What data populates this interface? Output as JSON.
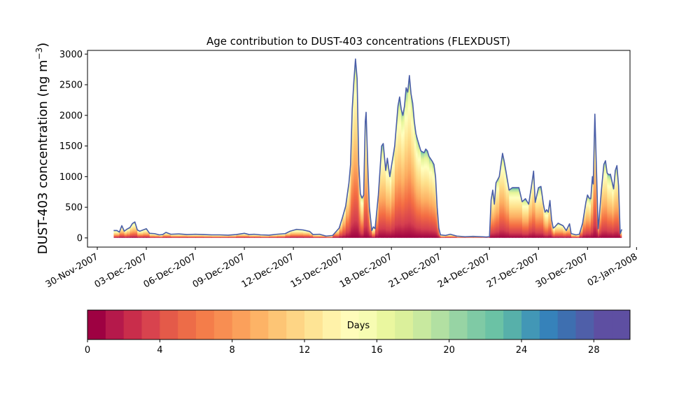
{
  "chart_data": {
    "type": "area",
    "title": "Age contribution to DUST-403 concentrations (FLEXDUST)",
    "ylabel_main": "DUST-403 concentration (ng m",
    "ylabel_sup": "−3",
    "ylabel_close": ")",
    "xlabel": "",
    "y_ticks": [
      0,
      500,
      1000,
      1500,
      2000,
      2500,
      3000
    ],
    "y_tick_labels": [
      "0",
      "500",
      "1000",
      "1500",
      "2000",
      "2500",
      "3000"
    ],
    "ylim": [
      -150,
      3060
    ],
    "xlim_days": [
      -0.6,
      32.6
    ],
    "x_origin_date": "30-Nov-2007",
    "x_tick_days": [
      0,
      3,
      6,
      9,
      12,
      15,
      18,
      21,
      24,
      27,
      30,
      33
    ],
    "x_tick_labels": [
      "30-Nov-2007",
      "03-Dec-2007",
      "06-Dec-2007",
      "09-Dec-2007",
      "12-Dec-2007",
      "15-Dec-2007",
      "18-Dec-2007",
      "21-Dec-2007",
      "24-Dec-2007",
      "27-Dec-2007",
      "30-Dec-2007",
      "02-Jan-2008"
    ],
    "series": [
      {
        "values": [
          [
            1.0,
            120
          ],
          [
            1.2,
            120
          ],
          [
            1.35,
            95
          ],
          [
            1.5,
            200
          ],
          [
            1.65,
            110
          ],
          [
            1.8,
            140
          ],
          [
            2.0,
            170
          ],
          [
            2.15,
            235
          ],
          [
            2.3,
            260
          ],
          [
            2.45,
            130
          ],
          [
            2.6,
            110
          ],
          [
            2.8,
            130
          ],
          [
            3.0,
            150
          ],
          [
            3.2,
            75
          ],
          [
            3.5,
            70
          ],
          [
            3.8,
            50
          ],
          [
            4.0,
            55
          ],
          [
            4.2,
            90
          ],
          [
            4.5,
            60
          ],
          [
            5.0,
            65
          ],
          [
            5.5,
            55
          ],
          [
            6.0,
            60
          ],
          [
            6.5,
            55
          ],
          [
            7.0,
            50
          ],
          [
            7.5,
            50
          ],
          [
            8.0,
            45
          ],
          [
            8.5,
            55
          ],
          [
            9.0,
            75
          ],
          [
            9.3,
            55
          ],
          [
            9.6,
            60
          ],
          [
            10.0,
            50
          ],
          [
            10.5,
            45
          ],
          [
            11.0,
            60
          ],
          [
            11.5,
            70
          ],
          [
            11.8,
            110
          ],
          [
            12.2,
            140
          ],
          [
            12.6,
            130
          ],
          [
            13.0,
            105
          ],
          [
            13.2,
            55
          ],
          [
            13.6,
            60
          ],
          [
            14.0,
            30
          ],
          [
            14.4,
            40
          ],
          [
            14.8,
            160
          ],
          [
            15.0,
            330
          ],
          [
            15.2,
            520
          ],
          [
            15.4,
            900
          ],
          [
            15.5,
            1200
          ],
          [
            15.6,
            2100
          ],
          [
            15.7,
            2550
          ],
          [
            15.8,
            2920
          ],
          [
            15.9,
            2600
          ],
          [
            16.0,
            1200
          ],
          [
            16.1,
            720
          ],
          [
            16.2,
            650
          ],
          [
            16.3,
            700
          ],
          [
            16.4,
            1900
          ],
          [
            16.45,
            2050
          ],
          [
            16.55,
            1200
          ],
          [
            16.65,
            500
          ],
          [
            16.8,
            120
          ],
          [
            16.9,
            180
          ],
          [
            17.0,
            150
          ],
          [
            17.2,
            700
          ],
          [
            17.4,
            1500
          ],
          [
            17.5,
            1540
          ],
          [
            17.65,
            1100
          ],
          [
            17.75,
            1300
          ],
          [
            17.9,
            1000
          ],
          [
            18.0,
            1170
          ],
          [
            18.2,
            1500
          ],
          [
            18.4,
            2150
          ],
          [
            18.5,
            2300
          ],
          [
            18.6,
            2100
          ],
          [
            18.7,
            2000
          ],
          [
            18.8,
            2150
          ],
          [
            18.9,
            2450
          ],
          [
            19.0,
            2380
          ],
          [
            19.1,
            2650
          ],
          [
            19.2,
            2350
          ],
          [
            19.3,
            2200
          ],
          [
            19.4,
            1900
          ],
          [
            19.5,
            1700
          ],
          [
            19.6,
            1600
          ],
          [
            19.8,
            1420
          ],
          [
            20.0,
            1390
          ],
          [
            20.1,
            1450
          ],
          [
            20.2,
            1420
          ],
          [
            20.3,
            1330
          ],
          [
            20.5,
            1250
          ],
          [
            20.6,
            1200
          ],
          [
            20.7,
            1000
          ],
          [
            20.8,
            500
          ],
          [
            20.9,
            160
          ],
          [
            21.0,
            50
          ],
          [
            21.3,
            40
          ],
          [
            21.6,
            60
          ],
          [
            22.0,
            30
          ],
          [
            22.5,
            20
          ],
          [
            23.0,
            25
          ],
          [
            23.5,
            20
          ],
          [
            23.8,
            15
          ],
          [
            24.0,
            20
          ],
          [
            24.1,
            620
          ],
          [
            24.2,
            780
          ],
          [
            24.3,
            550
          ],
          [
            24.4,
            900
          ],
          [
            24.6,
            1000
          ],
          [
            24.8,
            1380
          ],
          [
            24.9,
            1250
          ],
          [
            25.0,
            1100
          ],
          [
            25.2,
            780
          ],
          [
            25.4,
            820
          ],
          [
            25.6,
            820
          ],
          [
            25.8,
            820
          ],
          [
            26.0,
            590
          ],
          [
            26.2,
            640
          ],
          [
            26.4,
            550
          ],
          [
            26.6,
            900
          ],
          [
            26.7,
            1090
          ],
          [
            26.8,
            580
          ],
          [
            27.0,
            820
          ],
          [
            27.15,
            840
          ],
          [
            27.3,
            550
          ],
          [
            27.4,
            420
          ],
          [
            27.5,
            460
          ],
          [
            27.6,
            420
          ],
          [
            27.7,
            610
          ],
          [
            27.8,
            300
          ],
          [
            27.9,
            160
          ],
          [
            28.0,
            180
          ],
          [
            28.2,
            240
          ],
          [
            28.5,
            200
          ],
          [
            28.7,
            120
          ],
          [
            28.9,
            230
          ],
          [
            29.0,
            70
          ],
          [
            29.3,
            50
          ],
          [
            29.5,
            60
          ],
          [
            29.7,
            240
          ],
          [
            29.9,
            580
          ],
          [
            30.0,
            700
          ],
          [
            30.1,
            650
          ],
          [
            30.2,
            640
          ],
          [
            30.3,
            1000
          ],
          [
            30.35,
            880
          ],
          [
            30.45,
            2020
          ],
          [
            30.55,
            1100
          ],
          [
            30.65,
            150
          ],
          [
            30.7,
            280
          ],
          [
            30.85,
            780
          ],
          [
            31.0,
            1200
          ],
          [
            31.1,
            1260
          ],
          [
            31.2,
            1060
          ],
          [
            31.3,
            1030
          ],
          [
            31.4,
            1040
          ],
          [
            31.5,
            920
          ],
          [
            31.6,
            800
          ],
          [
            31.7,
            1100
          ],
          [
            31.8,
            1180
          ],
          [
            31.9,
            850
          ],
          [
            32.0,
            70
          ],
          [
            32.1,
            140
          ]
        ]
      }
    ],
    "colorbar": {
      "label": "Days",
      "min": 0,
      "max": 30,
      "ticks": [
        0,
        4,
        8,
        12,
        16,
        20,
        24,
        28
      ],
      "tick_labels": [
        "0",
        "4",
        "8",
        "12",
        "16",
        "20",
        "24",
        "28"
      ],
      "colors": [
        "#9e0142",
        "#b5194b",
        "#c92d4b",
        "#d8434e",
        "#e45a49",
        "#ed6c48",
        "#f47d4a",
        "#f88e52",
        "#fba05b",
        "#fdb366",
        "#fdc575",
        "#fed585",
        "#fee495",
        "#fff2a9",
        "#fffcba",
        "#f7fcb2",
        "#eaf79f",
        "#dbf09b",
        "#c8e99f",
        "#b2e0a2",
        "#97d4a4",
        "#7fcaa5",
        "#6bc2a5",
        "#57b0aa",
        "#4297b6",
        "#3682ba",
        "#3e6fb0",
        "#4f5fa9",
        "#5e4fa2",
        "#5e4fa2"
      ]
    },
    "grid": false
  }
}
